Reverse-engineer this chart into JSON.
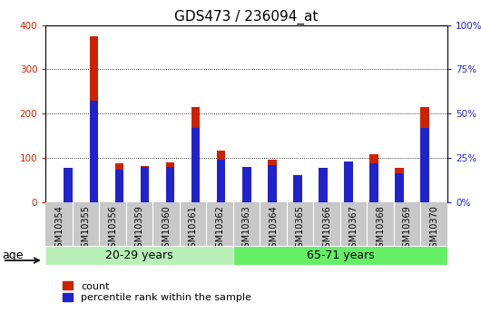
{
  "title": "GDS473 / 236094_at",
  "samples": [
    "GSM10354",
    "GSM10355",
    "GSM10356",
    "GSM10359",
    "GSM10360",
    "GSM10361",
    "GSM10362",
    "GSM10363",
    "GSM10364",
    "GSM10365",
    "GSM10366",
    "GSM10367",
    "GSM10368",
    "GSM10369",
    "GSM10370"
  ],
  "counts": [
    75,
    375,
    88,
    82,
    90,
    215,
    115,
    80,
    95,
    60,
    78,
    92,
    108,
    78,
    215
  ],
  "percentiles": [
    19,
    57,
    18,
    20,
    20,
    42,
    24,
    20,
    21,
    15,
    19,
    23,
    22,
    16,
    42
  ],
  "group1_label": "20-29 years",
  "group1_count": 7,
  "group2_label": "65-71 years",
  "group2_count": 8,
  "age_label": "age",
  "count_color": "#cc2200",
  "percentile_color": "#2222cc",
  "bar_width": 0.35,
  "ylim_left": [
    0,
    400
  ],
  "ylim_right": [
    0,
    100
  ],
  "yticks_left": [
    0,
    100,
    200,
    300,
    400
  ],
  "yticks_right": [
    0,
    25,
    50,
    75,
    100
  ],
  "grid_color": "#000000",
  "plot_bg": "#ffffff",
  "tick_bg": "#c8c8c8",
  "group1_bg": "#b8f0b8",
  "group2_bg": "#66ee66",
  "legend_count": "count",
  "legend_pct": "percentile rank within the sample",
  "title_fontsize": 11,
  "tick_fontsize": 7.5,
  "sample_fontsize": 7,
  "group_fontsize": 9
}
